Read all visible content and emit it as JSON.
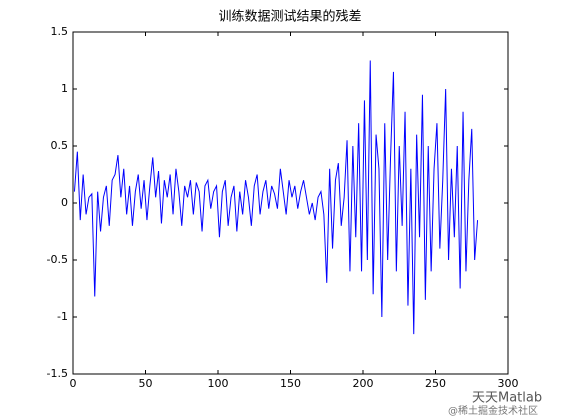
{
  "chart_data": {
    "type": "line",
    "title": "训练数据测试结果的残差",
    "x": [
      1,
      3,
      5,
      7,
      9,
      11,
      13,
      15,
      17,
      19,
      21,
      23,
      25,
      27,
      29,
      31,
      33,
      35,
      37,
      39,
      41,
      43,
      45,
      47,
      49,
      51,
      53,
      55,
      57,
      59,
      61,
      63,
      65,
      67,
      69,
      71,
      73,
      75,
      77,
      79,
      81,
      83,
      85,
      87,
      89,
      91,
      93,
      95,
      97,
      99,
      101,
      103,
      105,
      107,
      109,
      111,
      113,
      115,
      117,
      119,
      121,
      123,
      125,
      127,
      129,
      131,
      133,
      135,
      137,
      139,
      141,
      143,
      145,
      147,
      149,
      151,
      153,
      155,
      157,
      159,
      161,
      163,
      165,
      167,
      169,
      171,
      173,
      175,
      177,
      179,
      181,
      183,
      185,
      187,
      189,
      191,
      193,
      195,
      197,
      199,
      201,
      203,
      205,
      207,
      209,
      211,
      213,
      215,
      217,
      219,
      221,
      223,
      225,
      227,
      229,
      231,
      233,
      235,
      237,
      239,
      241,
      243,
      245,
      247,
      249,
      251,
      253,
      255,
      257,
      259,
      261,
      263,
      265,
      267,
      269,
      271,
      273,
      275,
      277,
      279
    ],
    "values": [
      0.1,
      0.45,
      -0.15,
      0.25,
      -0.1,
      0.05,
      0.08,
      -0.82,
      0.1,
      -0.25,
      0.05,
      0.15,
      -0.2,
      0.2,
      0.25,
      0.42,
      0.05,
      0.3,
      -0.1,
      0.15,
      -0.2,
      0.1,
      0.25,
      -0.05,
      0.2,
      -0.15,
      0.15,
      0.4,
      0.05,
      0.28,
      -0.18,
      0.2,
      0.05,
      0.25,
      -0.1,
      0.3,
      0.1,
      -0.2,
      0.15,
      0.05,
      0.2,
      -0.1,
      0.18,
      0.1,
      -0.25,
      0.15,
      0.2,
      -0.05,
      0.1,
      0.15,
      -0.3,
      0.1,
      0.2,
      -0.2,
      0.05,
      0.15,
      -0.25,
      0.1,
      -0.1,
      0.2,
      0.05,
      -0.2,
      0.15,
      0.25,
      -0.1,
      0.1,
      0.2,
      -0.05,
      0.15,
      0.08,
      -0.05,
      0.3,
      0.1,
      -0.1,
      0.2,
      0.05,
      0.15,
      -0.05,
      0.1,
      0.2,
      0.05,
      -0.1,
      0.0,
      -0.15,
      0.05,
      0.1,
      -0.1,
      -0.7,
      0.3,
      -0.4,
      0.2,
      0.35,
      -0.2,
      0.05,
      0.55,
      -0.6,
      0.5,
      -0.3,
      0.7,
      -0.6,
      0.9,
      -0.5,
      1.25,
      -0.8,
      0.6,
      0.3,
      -1.0,
      0.7,
      -0.5,
      0.4,
      1.15,
      -0.6,
      0.5,
      -0.2,
      0.8,
      -0.9,
      0.3,
      -1.15,
      0.6,
      -0.3,
      0.95,
      -0.85,
      0.5,
      -0.6,
      0.3,
      0.7,
      -0.4,
      0.2,
      1.0,
      -0.5,
      0.3,
      -0.3,
      0.5,
      -0.75,
      0.8,
      -0.6,
      0.2,
      0.65,
      -0.5,
      -0.15
    ],
    "color": "#0000ff",
    "xlim": [
      0,
      300
    ],
    "xticks": [
      0,
      50,
      100,
      150,
      200,
      250,
      300
    ],
    "ylim": [
      -1.5,
      1.5
    ],
    "yticks": [
      -1.5,
      -1,
      -0.5,
      0,
      0.5,
      1,
      1.5
    ],
    "grid": false
  },
  "watermark": {
    "name": "天天Matlab",
    "source": "@稀土掘金技术社区"
  }
}
